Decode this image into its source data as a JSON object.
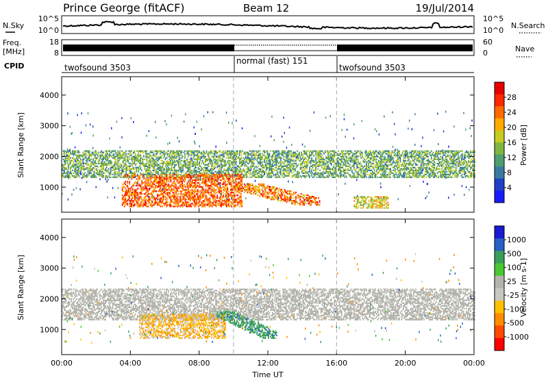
{
  "header": {
    "title": "Prince George (fitACF)",
    "beam": "Beam 12",
    "date": "19/Jul/2014"
  },
  "top_panel": {
    "left_labels": {
      "nsky": "N.Sky",
      "freq": "Freq.",
      "freq_unit": "[MHz]",
      "cpid": "CPID"
    },
    "right_labels": {
      "nsearch": "N.Search",
      "nave": "Nave"
    },
    "noise_ticks": [
      "10^5",
      "10^0"
    ],
    "freq_ticks": [
      "18",
      "8"
    ],
    "nave_ticks": [
      "60",
      "0"
    ],
    "cpid_segments": [
      {
        "label": "twofsound 3503",
        "start": 0,
        "end": 10
      },
      {
        "label": "normal (fast) 151",
        "start": 10,
        "end": 16
      },
      {
        "label": "twofsound 3503",
        "start": 16,
        "end": 24
      }
    ]
  },
  "colors": {
    "power_scale": [
      "#1a1aff",
      "#2040c8",
      "#3a7aa0",
      "#4f9e6e",
      "#7fb640",
      "#c6cc22",
      "#ffaa00",
      "#ff6a00",
      "#ff2800",
      "#e60000"
    ],
    "velocity_scale": [
      "#ff0000",
      "#ff4a00",
      "#ff8c00",
      "#ffc000",
      "#c8c8c0",
      "#b4b4ac",
      "#4ac832",
      "#3a9e5a",
      "#2860c8",
      "#1a1ad2"
    ],
    "ground_scatter": "#aaaaaa"
  },
  "chart_data": [
    {
      "type": "heatmap",
      "name": "power",
      "ylabel": "Slant Range [km]",
      "colorbar_label": "Power [dB]",
      "colorbar_ticks": [
        "28",
        "24",
        "20",
        "16",
        "12",
        "8",
        "4"
      ],
      "ylim": [
        180,
        4600
      ],
      "y_ticks": [
        1000,
        2000,
        3000,
        4000
      ],
      "xlim": [
        0,
        24
      ],
      "x_ticks": [
        0,
        4,
        8,
        12,
        16,
        20,
        24
      ],
      "mode_boundaries_hours": [
        10,
        16
      ],
      "features": [
        {
          "desc": "mid-range band",
          "t_start": 0,
          "t_end": 24,
          "range_km": [
            1300,
            2200
          ],
          "power_db": [
            8,
            20
          ]
        },
        {
          "desc": "intense near range scatter",
          "t_start": 3.5,
          "t_end": 10.5,
          "range_km": [
            350,
            1400
          ],
          "power_db": [
            20,
            30
          ]
        },
        {
          "desc": "descending arc",
          "t_start": 10,
          "t_end": 15,
          "range_km": [
            400,
            1100
          ],
          "power_db": [
            18,
            30
          ]
        },
        {
          "desc": "evening near range",
          "t_start": 17,
          "t_end": 19,
          "range_km": [
            300,
            700
          ],
          "power_db": [
            14,
            24
          ]
        }
      ]
    },
    {
      "type": "heatmap",
      "name": "velocity",
      "ylabel": "Slant Range [km]",
      "xlabel": "Time UT",
      "colorbar_label": "Velocity [m s-1]",
      "colorbar_ticks": [
        "1000",
        "500",
        "100",
        "25",
        "-25",
        "-100",
        "-500",
        "-1000"
      ],
      "ylim": [
        180,
        4600
      ],
      "y_ticks": [
        1000,
        2000,
        3000,
        4000
      ],
      "xlim": [
        0,
        24
      ],
      "x_ticks": [
        0,
        4,
        8,
        12,
        16,
        20,
        24
      ],
      "x_tick_labels": [
        "00:00",
        "04:00",
        "08:00",
        "12:00",
        "16:00",
        "20:00",
        "00:00"
      ],
      "mode_boundaries_hours": [
        10,
        16
      ],
      "features": [
        {
          "desc": "ground scatter band",
          "t_start": 0,
          "t_end": 24,
          "range_km": [
            1300,
            2300
          ],
          "velocity": 0
        },
        {
          "desc": "negative velocity patch",
          "t_start": 4.5,
          "t_end": 9.5,
          "range_km": [
            700,
            1500
          ],
          "velocity": -150
        },
        {
          "desc": "positive velocity arc",
          "t_start": 9,
          "t_end": 12.5,
          "range_km": [
            700,
            1600
          ],
          "velocity": 200
        }
      ]
    }
  ]
}
